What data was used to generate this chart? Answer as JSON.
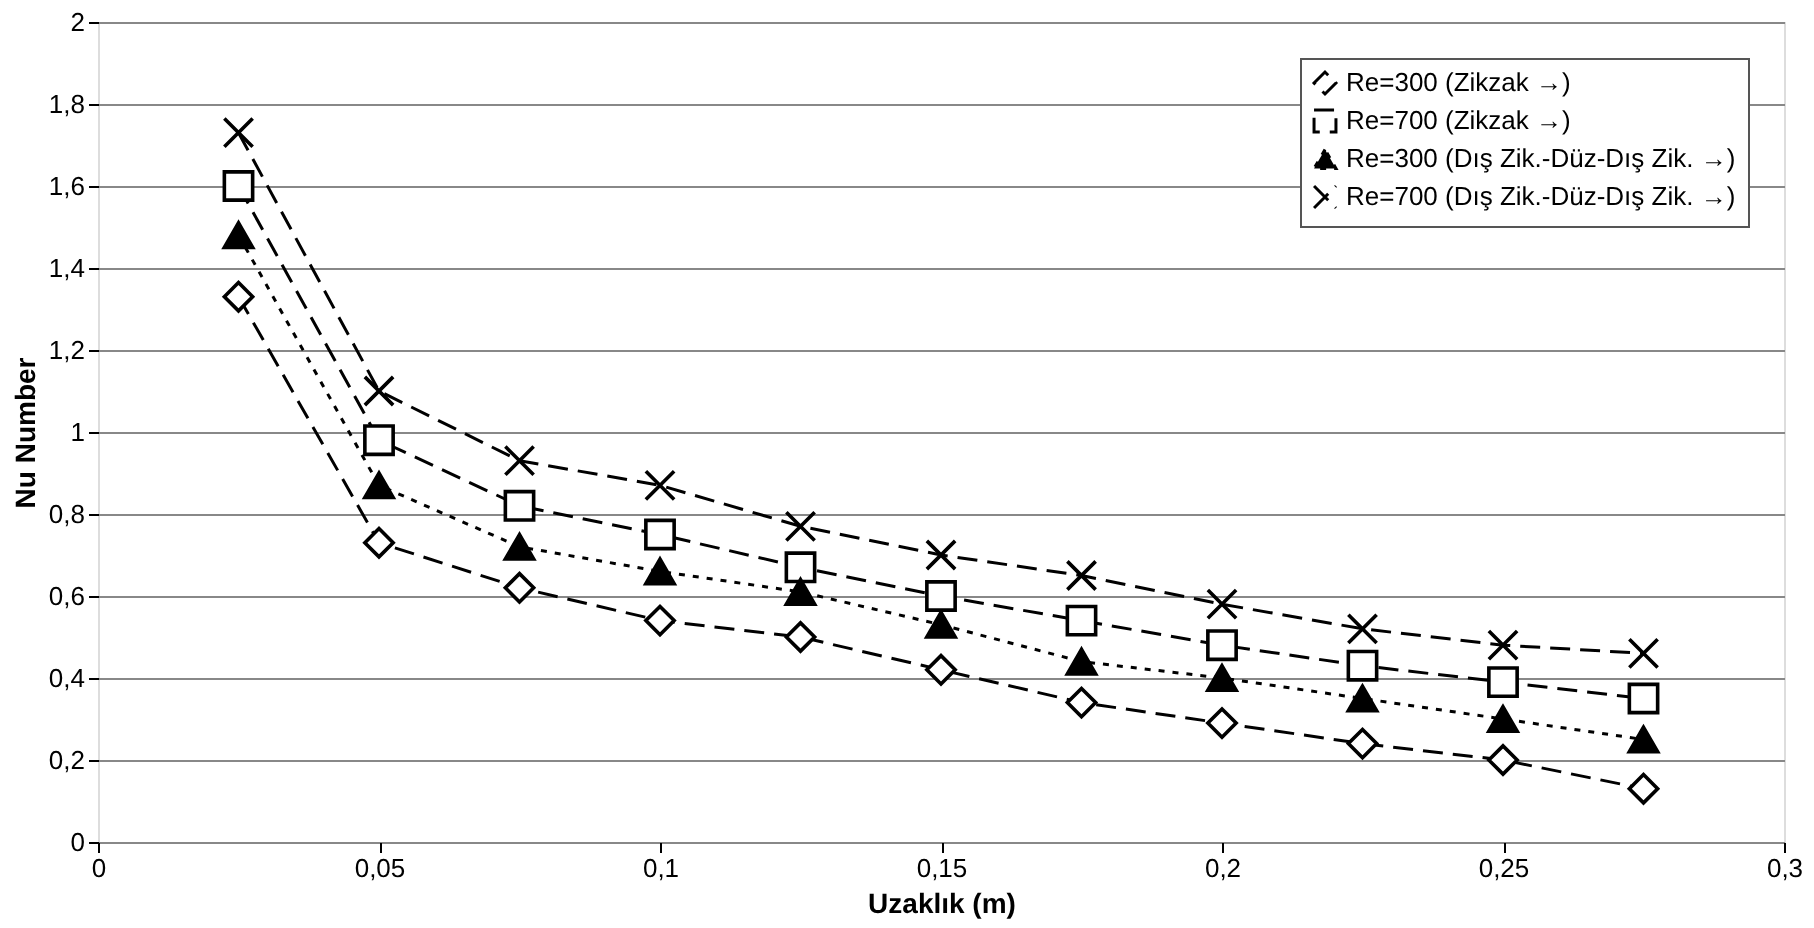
{
  "chart_data": {
    "type": "line",
    "xlabel": "Uzaklık (m)",
    "ylabel": "Nu Number",
    "x": [
      0.025,
      0.05,
      0.075,
      0.1,
      0.125,
      0.15,
      0.175,
      0.2,
      0.225,
      0.25,
      0.275
    ],
    "series": [
      {
        "name": "Re=300 (Zikzak →)",
        "color": "#000000",
        "marker": "diamond",
        "line_style": "dashed",
        "values": [
          1.33,
          0.73,
          0.62,
          0.54,
          0.5,
          0.42,
          0.34,
          0.29,
          0.24,
          0.2,
          0.13
        ]
      },
      {
        "name": "Re=700 (Zikzak →)",
        "color": "#000000",
        "marker": "square",
        "line_style": "dashed",
        "values": [
          1.6,
          0.98,
          0.82,
          0.75,
          0.67,
          0.6,
          0.54,
          0.48,
          0.43,
          0.39,
          0.35
        ]
      },
      {
        "name": "Re=300 (Dış Zik.-Düz-Dış Zik. →)",
        "color": "#000000",
        "marker": "triangle",
        "line_style": "dotted",
        "values": [
          1.48,
          0.87,
          0.72,
          0.66,
          0.61,
          0.53,
          0.44,
          0.4,
          0.35,
          0.3,
          0.25
        ]
      },
      {
        "name": "Re=700 (Dış Zik.-Düz-Dış Zik. →)",
        "color": "#000000",
        "marker": "cross",
        "line_style": "dashed",
        "values": [
          1.73,
          1.1,
          0.93,
          0.87,
          0.77,
          0.7,
          0.65,
          0.58,
          0.52,
          0.48,
          0.46
        ]
      }
    ],
    "xlim": [
      0,
      0.3
    ],
    "xticks": [
      0,
      {
        "value": 0.05,
        "label": "0,05"
      },
      {
        "value": 0.1,
        "label": "0,1"
      },
      {
        "value": 0.15,
        "label": "0,15"
      },
      {
        "value": 0.2,
        "label": "0,2"
      },
      {
        "value": 0.25,
        "label": "0,25"
      },
      {
        "value": 0.3,
        "label": "0,3"
      }
    ],
    "ylim": [
      0,
      2
    ],
    "yticks": [
      0,
      {
        "value": 0.2,
        "label": "0,2"
      },
      {
        "value": 0.4,
        "label": "0,4"
      },
      {
        "value": 0.6,
        "label": "0,6"
      },
      {
        "value": 0.8,
        "label": "0,8"
      },
      1,
      {
        "value": 1.2,
        "label": "1,2"
      },
      {
        "value": 1.4,
        "label": "1,4"
      },
      {
        "value": 1.6,
        "label": "1,6"
      },
      {
        "value": 1.8,
        "label": "1,8"
      },
      2
    ],
    "grid": "y",
    "legend": "top right"
  }
}
